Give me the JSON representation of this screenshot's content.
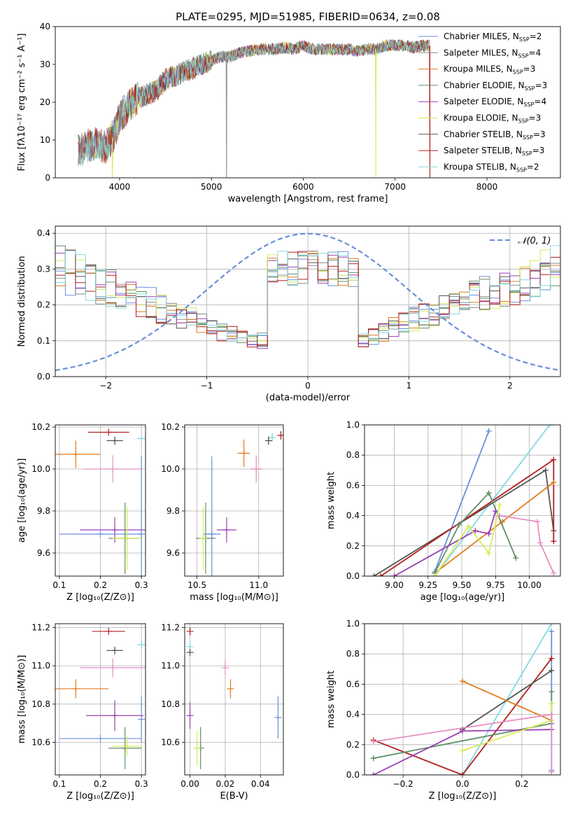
{
  "figure": {
    "title": "PLATE=0295, MJD=51985, FIBERID=0634, z=0.08"
  },
  "chart_data": [
    {
      "id": "spectrum",
      "type": "line",
      "xlabel": "wavelength [Angstrom, rest frame]",
      "ylabel": "Flux [fλ10⁻¹⁷ erg cm⁻² s⁻¹ A⁻¹]",
      "xlim": [
        3300,
        8800
      ],
      "ylim": [
        0,
        40
      ],
      "xticks": [
        4000,
        5000,
        6000,
        7000,
        8000
      ],
      "yticks": [
        0,
        10,
        20,
        30,
        40
      ],
      "grid": false,
      "legend_position": "right",
      "legend": [
        {
          "label": "Chabrier MILES, NSSP=2",
          "color": "#6a8fd8"
        },
        {
          "label": "Salpeter MILES, NSSP=4",
          "color": "#8a8a8a"
        },
        {
          "label": "Kroupa MILES, NSSP=3",
          "color": "#e07b1f"
        },
        {
          "label": "Chabrier ELODIE, NSSP=3",
          "color": "#5e8f66"
        },
        {
          "label": "Salpeter ELODIE, NSSP=4",
          "color": "#9a3fb3"
        },
        {
          "label": "Kroupa ELODIE, NSSP=3",
          "color": "#d8ea5a"
        },
        {
          "label": "Chabrier STELIB, NSSP=3",
          "color": "#555555"
        },
        {
          "label": "Salpeter STELIB, NSSP=3",
          "color": "#b22020"
        },
        {
          "label": "Kroupa STELIB, NSSP=2",
          "color": "#86d8e0"
        }
      ],
      "continuum": [
        [
          3550,
          7
        ],
        [
          3650,
          8.5
        ],
        [
          3750,
          9
        ],
        [
          3850,
          8
        ],
        [
          3950,
          12
        ],
        [
          4000,
          16
        ],
        [
          4100,
          19
        ],
        [
          4200,
          21
        ],
        [
          4300,
          22
        ],
        [
          4400,
          23
        ],
        [
          4500,
          26
        ],
        [
          4600,
          27
        ],
        [
          4700,
          28
        ],
        [
          4800,
          29
        ],
        [
          4900,
          30
        ],
        [
          5000,
          31
        ],
        [
          5100,
          32
        ],
        [
          5200,
          32
        ],
        [
          5300,
          33
        ],
        [
          5400,
          33.5
        ],
        [
          5500,
          34
        ],
        [
          5600,
          34
        ],
        [
          5700,
          34
        ],
        [
          5800,
          34.5
        ],
        [
          5900,
          34
        ],
        [
          6000,
          35
        ],
        [
          6100,
          34
        ],
        [
          6200,
          34
        ],
        [
          6300,
          34
        ],
        [
          6400,
          34
        ],
        [
          6500,
          34
        ],
        [
          6600,
          33.5
        ],
        [
          6700,
          34
        ],
        [
          6800,
          34
        ],
        [
          6900,
          35
        ],
        [
          7000,
          35
        ],
        [
          7100,
          35
        ],
        [
          7200,
          34.5
        ],
        [
          7300,
          35
        ],
        [
          7380,
          35
        ]
      ],
      "visible_range": [
        3550,
        7380
      ],
      "dropouts": [
        {
          "x": 5165,
          "color": "#8a8a8a"
        },
        {
          "x": 6790,
          "color": "#d8ea5a"
        },
        {
          "x": 7380,
          "color": "#b22020"
        },
        {
          "x": 3920,
          "color": "#d8ea5a"
        }
      ]
    },
    {
      "id": "residual-distribution",
      "type": "line",
      "xlabel": "(data-model)/error",
      "ylabel": "Normed distribution",
      "xlim": [
        -2.5,
        2.5
      ],
      "ylim": [
        0,
        0.42
      ],
      "xticks": [
        -2,
        -1,
        0,
        1,
        2
      ],
      "yticks": [
        0.0,
        0.1,
        0.2,
        0.3,
        0.4
      ],
      "grid": true,
      "legend_position": "top-right",
      "legend": [
        {
          "label": "𝒩(0, 1)",
          "color": "#6a8fd8",
          "style": "dashed"
        }
      ],
      "bin_width": 0.1,
      "base_shape": [
        0.055,
        0.06,
        0.07,
        0.08,
        0.09,
        0.1,
        0.105,
        0.115,
        0.125,
        0.14,
        0.15,
        0.16,
        0.17,
        0.18,
        0.19,
        0.2,
        0.21,
        0.22,
        0.23,
        0.24,
        0.25,
        0.26,
        0.27,
        0.28,
        0.29,
        0.3,
        0.31,
        0.315,
        0.32,
        0.325,
        0.325,
        0.32,
        0.325,
        0.33,
        0.32,
        0.315,
        0.31,
        0.3,
        0.29,
        0.28,
        0.27,
        0.26,
        0.25,
        0.24,
        0.23,
        0.22,
        0.21,
        0.2,
        0.19,
        0.18,
        0.17,
        0.16,
        0.15,
        0.14,
        0.13,
        0.12,
        0.11,
        0.1,
        0.09,
        0.08,
        0.07,
        0.065,
        0.06,
        0.055,
        0.05,
        0.05,
        0.05,
        0.05,
        0.045,
        0.045,
        0.04,
        0.04,
        0.04,
        0.04,
        0.035,
        0.035,
        0.035,
        0.03,
        0.03,
        0.03,
        0.03,
        0.03,
        0.03,
        0.03,
        0.03,
        0.03,
        0.03,
        0.03,
        0.03,
        0.03,
        0.03,
        0.03,
        0.03,
        0.03,
        0.03,
        0.03,
        0.03,
        0.03,
        0.03,
        0.03
      ],
      "series_colors": [
        "#6a8fd8",
        "#8a8a8a",
        "#e07b1f",
        "#5e8f66",
        "#9a3fb3",
        "#d8ea5a",
        "#555555",
        "#b22020",
        "#86d8e0"
      ]
    },
    {
      "id": "age-vs-Z",
      "type": "scatter",
      "xlabel": "Z [log₁₀(Z/Z⊙)]",
      "ylabel": "age  [log₁₀(age/yr)]",
      "xlim": [
        0.09,
        0.31
      ],
      "ylim": [
        9.49,
        10.21
      ],
      "xticks": [
        0.1,
        0.2,
        0.3
      ],
      "yticks": [
        9.6,
        9.8,
        10.0,
        10.2
      ],
      "grid": true,
      "points": [
        {
          "x": 0.3,
          "y": 10.145,
          "xerr": 0.01,
          "yerr": 0.0,
          "color": "#86d8e0"
        },
        {
          "x": 0.22,
          "y": 10.175,
          "xerr": 0.05,
          "yerr": 0.0,
          "color": "#b22020"
        },
        {
          "x": 0.235,
          "y": 10.135,
          "xerr": 0.02,
          "yerr": 0.02,
          "color": "#555555"
        },
        {
          "x": 0.14,
          "y": 10.07,
          "xerr": 0.06,
          "yerr": 0.065,
          "color": "#e07b1f"
        },
        {
          "x": 0.23,
          "y": 10.0,
          "xerr": 0.07,
          "yerr": 0.065,
          "color": "#e78fc1"
        },
        {
          "x": 0.235,
          "y": 9.71,
          "xerr": 0.085,
          "yerr": 0.06,
          "color": "#9a3fb3"
        },
        {
          "x": 0.2,
          "y": 9.69,
          "xerr": 0.1,
          "yerr": 0.0,
          "color": "#6a8fd8"
        },
        {
          "x": 0.3,
          "y": 9.69,
          "xerr": 0.0,
          "yerr": 0.37,
          "color": "#6a8fd8"
        },
        {
          "x": 0.26,
          "y": 9.67,
          "xerr": 0.04,
          "yerr": 0.17,
          "color": "#5e8f66"
        },
        {
          "x": 0.265,
          "y": 9.67,
          "xerr": 0.035,
          "yerr": 0.15,
          "color": "#d8ea5a"
        }
      ]
    },
    {
      "id": "age-vs-mass",
      "type": "scatter",
      "xlabel": "mass [log₁₀(M/M⊙)]",
      "ylabel": "",
      "xlim": [
        10.4,
        11.2
      ],
      "ylim": [
        9.49,
        10.21
      ],
      "xticks": [
        10.5,
        11.0
      ],
      "yticks": [
        9.6,
        9.8,
        10.0,
        10.2
      ],
      "grid": true,
      "points": [
        {
          "x": 11.18,
          "y": 10.16,
          "xerr": 0.0,
          "yerr": 0.02,
          "color": "#b22020"
        },
        {
          "x": 11.11,
          "y": 10.15,
          "xerr": 0.0,
          "yerr": 0.02,
          "color": "#86d8e0"
        },
        {
          "x": 11.08,
          "y": 10.135,
          "xerr": 0.02,
          "yerr": 0.02,
          "color": "#555555"
        },
        {
          "x": 10.88,
          "y": 10.075,
          "xerr": 0.05,
          "yerr": 0.065,
          "color": "#e07b1f"
        },
        {
          "x": 10.98,
          "y": 10.0,
          "xerr": 0.05,
          "yerr": 0.065,
          "color": "#e78fc1"
        },
        {
          "x": 10.74,
          "y": 9.71,
          "xerr": 0.08,
          "yerr": 0.06,
          "color": "#9a3fb3"
        },
        {
          "x": 10.62,
          "y": 9.69,
          "xerr": 0.07,
          "yerr": 0.37,
          "color": "#6a8fd8"
        },
        {
          "x": 10.57,
          "y": 9.67,
          "xerr": 0.08,
          "yerr": 0.17,
          "color": "#5e8f66"
        },
        {
          "x": 10.55,
          "y": 9.67,
          "xerr": 0.01,
          "yerr": 0.15,
          "color": "#d8ea5a"
        }
      ]
    },
    {
      "id": "mass-weight-vs-age",
      "type": "line",
      "xlabel": "age  [log₁₀(age/yr)]",
      "ylabel": "mass weight",
      "xlim": [
        8.78,
        10.23
      ],
      "ylim": [
        0,
        1.0
      ],
      "xticks": [
        9.0,
        9.25,
        9.5,
        9.75,
        10.0
      ],
      "yticks": [
        0.0,
        0.2,
        0.4,
        0.6,
        0.8,
        1.0
      ],
      "grid": true,
      "series": [
        {
          "color": "#6a8fd8",
          "points": [
            [
              9.3,
              0.03
            ],
            [
              9.7,
              0.96
            ]
          ]
        },
        {
          "color": "#86d8e0",
          "points": [
            [
              9.3,
              0.0
            ],
            [
              10.15,
              1.0
            ]
          ]
        },
        {
          "color": "#555555",
          "points": [
            [
              8.85,
              0.0
            ],
            [
              10.12,
              0.7
            ],
            [
              10.18,
              0.3
            ]
          ]
        },
        {
          "color": "#b22020",
          "points": [
            [
              8.9,
              0.0
            ],
            [
              10.18,
              0.77
            ],
            [
              10.18,
              0.23
            ]
          ]
        },
        {
          "color": "#e07b1f",
          "points": [
            [
              9.3,
              0.02
            ],
            [
              9.8,
              0.36
            ],
            [
              10.18,
              0.62
            ]
          ]
        },
        {
          "color": "#5e8f66",
          "points": [
            [
              9.3,
              0.02
            ],
            [
              9.48,
              0.34
            ],
            [
              9.7,
              0.55
            ],
            [
              9.9,
              0.12
            ]
          ]
        },
        {
          "color": "#9a3fb3",
          "points": [
            [
              9.0,
              0.0
            ],
            [
              9.6,
              0.3
            ],
            [
              9.7,
              0.28
            ],
            [
              9.75,
              0.43
            ]
          ]
        },
        {
          "color": "#d8ea5a",
          "points": [
            [
              9.3,
              0.0
            ],
            [
              9.55,
              0.33
            ],
            [
              9.7,
              0.15
            ],
            [
              9.78,
              0.47
            ]
          ]
        },
        {
          "color": "#e78fc1",
          "points": [
            [
              9.78,
              0.4
            ],
            [
              10.06,
              0.36
            ],
            [
              10.08,
              0.22
            ],
            [
              10.18,
              0.02
            ]
          ]
        }
      ]
    },
    {
      "id": "mass-vs-Z",
      "type": "scatter",
      "xlabel": "Z [log₁₀(Z/Z⊙)]",
      "ylabel": "mass [log₁₀(M/M⊙)]",
      "xlim": [
        0.09,
        0.31
      ],
      "ylim": [
        10.43,
        11.22
      ],
      "xticks": [
        0.1,
        0.2,
        0.3
      ],
      "yticks": [
        10.6,
        10.8,
        11.0,
        11.2
      ],
      "grid": true,
      "points": [
        {
          "x": 0.22,
          "y": 11.18,
          "xerr": 0.04,
          "yerr": 0.0,
          "color": "#b22020"
        },
        {
          "x": 0.3,
          "y": 11.11,
          "xerr": 0.01,
          "yerr": 0.02,
          "color": "#86d8e0"
        },
        {
          "x": 0.235,
          "y": 11.08,
          "xerr": 0.02,
          "yerr": 0.02,
          "color": "#555555"
        },
        {
          "x": 0.23,
          "y": 10.99,
          "xerr": 0.08,
          "yerr": 0.05,
          "color": "#e78fc1"
        },
        {
          "x": 0.14,
          "y": 10.88,
          "xerr": 0.08,
          "yerr": 0.05,
          "color": "#e07b1f"
        },
        {
          "x": 0.235,
          "y": 10.74,
          "xerr": 0.07,
          "yerr": 0.08,
          "color": "#9a3fb3"
        },
        {
          "x": 0.2,
          "y": 10.62,
          "xerr": 0.1,
          "yerr": 0.0,
          "color": "#6a8fd8"
        },
        {
          "x": 0.3,
          "y": 10.72,
          "xerr": 0.0,
          "yerr": 0.12,
          "color": "#6a8fd8"
        },
        {
          "x": 0.26,
          "y": 10.57,
          "xerr": 0.04,
          "yerr": 0.11,
          "color": "#5e8f66"
        },
        {
          "x": 0.265,
          "y": 10.58,
          "xerr": 0.035,
          "yerr": 0.05,
          "color": "#d8ea5a"
        }
      ]
    },
    {
      "id": "mass-vs-ebv",
      "type": "scatter",
      "xlabel": "E(B-V)",
      "ylabel": "",
      "xlim": [
        -0.003,
        0.053
      ],
      "ylim": [
        10.43,
        11.22
      ],
      "xticks": [
        0.0,
        0.02,
        0.04
      ],
      "yticks": [
        10.6,
        10.8,
        11.0,
        11.2
      ],
      "grid": true,
      "points": [
        {
          "x": 0.0,
          "y": 11.18,
          "xerr": 0.0,
          "yerr": 0.02,
          "color": "#b22020"
        },
        {
          "x": 0.0,
          "y": 11.1,
          "xerr": 0.0,
          "yerr": 0.03,
          "color": "#86d8e0"
        },
        {
          "x": 0.0,
          "y": 11.07,
          "xerr": 0.0,
          "yerr": 0.01,
          "color": "#555555"
        },
        {
          "x": 0.02,
          "y": 10.99,
          "xerr": 0.0,
          "yerr": 0.04,
          "color": "#e78fc1"
        },
        {
          "x": 0.023,
          "y": 10.88,
          "xerr": 0.0,
          "yerr": 0.05,
          "color": "#e07b1f"
        },
        {
          "x": 0.0,
          "y": 10.74,
          "xerr": 0.0,
          "yerr": 0.07,
          "color": "#9a3fb3"
        },
        {
          "x": 0.05,
          "y": 10.73,
          "xerr": 0.0,
          "yerr": 0.11,
          "color": "#6a8fd8"
        },
        {
          "x": 0.006,
          "y": 10.57,
          "xerr": 0.0,
          "yerr": 0.11,
          "color": "#5e8f66"
        },
        {
          "x": 0.004,
          "y": 10.57,
          "xerr": 0.0,
          "yerr": 0.09,
          "color": "#d8ea5a"
        }
      ]
    },
    {
      "id": "mass-weight-vs-Z",
      "type": "line",
      "xlabel": "Z [log₁₀(Z/Z⊙)]",
      "ylabel": "mass weight",
      "xlim": [
        -0.33,
        0.33
      ],
      "ylim": [
        0,
        1.0
      ],
      "xticks": [
        -0.2,
        0.0,
        0.2
      ],
      "yticks": [
        0.0,
        0.2,
        0.4,
        0.6,
        0.8,
        1.0
      ],
      "grid": true,
      "series": [
        {
          "color": "#86d8e0",
          "points": [
            [
              0.0,
              0.0
            ],
            [
              0.3,
              1.0
            ]
          ]
        },
        {
          "color": "#6a8fd8",
          "points": [
            [
              0.3,
              0.95
            ],
            [
              0.3,
              0.03
            ]
          ]
        },
        {
          "color": "#b22020",
          "points": [
            [
              -0.3,
              0.23
            ],
            [
              0.0,
              0.0
            ],
            [
              0.3,
              0.77
            ]
          ]
        },
        {
          "color": "#555555",
          "points": [
            [
              0.0,
              0.3
            ],
            [
              0.3,
              0.69
            ]
          ]
        },
        {
          "color": "#e07b1f",
          "points": [
            [
              0.0,
              0.62
            ],
            [
              0.3,
              0.36
            ]
          ]
        },
        {
          "color": "#5e8f66",
          "points": [
            [
              -0.3,
              0.11
            ],
            [
              0.3,
              0.34
            ],
            [
              0.3,
              0.55
            ]
          ]
        },
        {
          "color": "#9a3fb3",
          "points": [
            [
              -0.3,
              0.0
            ],
            [
              0.0,
              0.29
            ],
            [
              0.3,
              0.3
            ]
          ]
        },
        {
          "color": "#d8ea5a",
          "points": [
            [
              0.0,
              0.16
            ],
            [
              0.3,
              0.36
            ],
            [
              0.3,
              0.47
            ]
          ]
        },
        {
          "color": "#e78fc1",
          "points": [
            [
              -0.3,
              0.22
            ],
            [
              0.3,
              0.4
            ],
            [
              0.3,
              0.02
            ]
          ]
        }
      ]
    }
  ]
}
